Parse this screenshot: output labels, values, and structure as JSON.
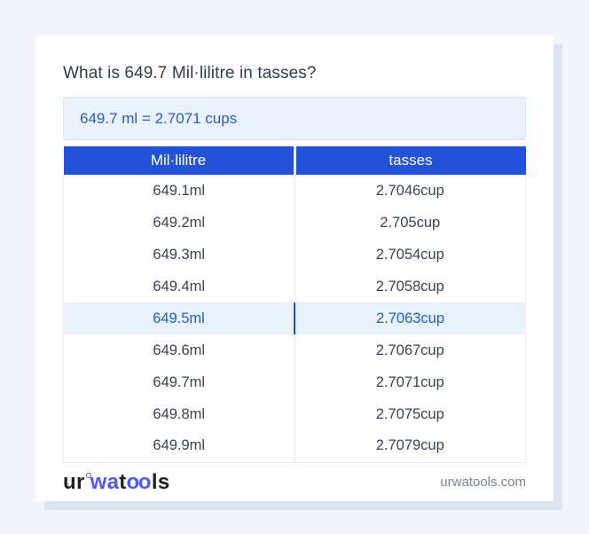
{
  "title": "What is 649.7 Mil·lilitre in tasses?",
  "answer": {
    "text": "649.7 ml = 2.7071 cups"
  },
  "table": {
    "headers": [
      "Mil·lilitre",
      "tasses"
    ],
    "rows": [
      {
        "ml": "649.1ml",
        "cup": "2.7046cup"
      },
      {
        "ml": "649.2ml",
        "cup": "2.705cup"
      },
      {
        "ml": "649.3ml",
        "cup": "2.7054cup"
      },
      {
        "ml": "649.4ml",
        "cup": "2.7058cup"
      },
      {
        "ml": "649.5ml",
        "cup": "2.7063cup",
        "highlighted": true
      },
      {
        "ml": "649.6ml",
        "cup": "2.7067cup"
      },
      {
        "ml": "649.7ml",
        "cup": "2.7071cup"
      },
      {
        "ml": "649.8ml",
        "cup": "2.7075cup"
      },
      {
        "ml": "649.9ml",
        "cup": "2.7079cup"
      }
    ]
  },
  "footer": {
    "logo": {
      "part1": "ur",
      "part2": "wa",
      "part3": "t",
      "part4": "oo",
      "part5": "ls"
    },
    "site": "urwatools.com"
  },
  "colors": {
    "page_background": "#f3f5fb",
    "card_background": "#ffffff",
    "card_shadow": "#dce2f0",
    "header_blue": "#2351d8",
    "answer_background": "#eaf2fd",
    "answer_text": "#2a5cb9",
    "highlight_row_background": "#e9f1fc",
    "highlight_row_text": "#1e62c8",
    "highlight_divider": "#1d4ed8",
    "logo_accent": "#4f5bf0"
  }
}
